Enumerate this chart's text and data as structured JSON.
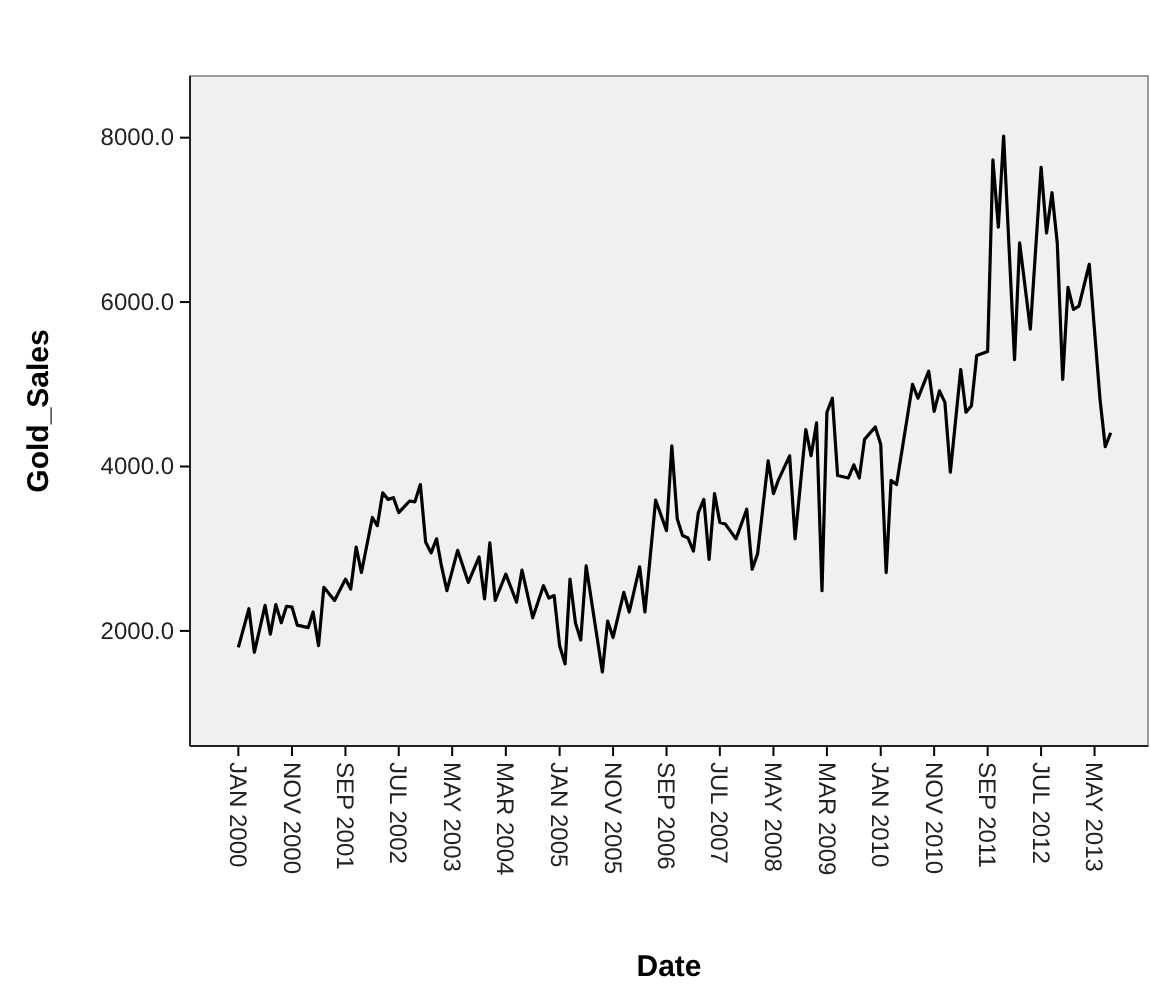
{
  "chart_data": {
    "type": "line",
    "xlabel": "Date",
    "ylabel": "Gold_Sales",
    "xlim": [
      "1999-04",
      "2014-03"
    ],
    "xticks": [
      {
        "value": "2000-01",
        "label": "JAN 2000"
      },
      {
        "value": "2000-11",
        "label": "NOV 2000"
      },
      {
        "value": "2001-09",
        "label": "SEP 2001"
      },
      {
        "value": "2002-07",
        "label": "JUL 2002"
      },
      {
        "value": "2003-05",
        "label": "MAY 2003"
      },
      {
        "value": "2004-03",
        "label": "MAR 2004"
      },
      {
        "value": "2005-01",
        "label": "JAN 2005"
      },
      {
        "value": "2005-11",
        "label": "NOV 2005"
      },
      {
        "value": "2006-09",
        "label": "SEP 2006"
      },
      {
        "value": "2007-07",
        "label": "JUL 2007"
      },
      {
        "value": "2008-05",
        "label": "MAY 2008"
      },
      {
        "value": "2009-03",
        "label": "MAR 2009"
      },
      {
        "value": "2010-01",
        "label": "JAN 2010"
      },
      {
        "value": "2010-11",
        "label": "NOV 2010"
      },
      {
        "value": "2011-09",
        "label": "SEP 2011"
      },
      {
        "value": "2012-07",
        "label": "JUL 2012"
      },
      {
        "value": "2013-05",
        "label": "MAY 2013"
      }
    ],
    "ylim": [
      600,
      8750
    ],
    "yticks": [
      {
        "value": 2000,
        "label": "2000.0"
      },
      {
        "value": 4000,
        "label": "4000.0"
      },
      {
        "value": 6000,
        "label": "6000.0"
      },
      {
        "value": 8000,
        "label": "8000.0"
      }
    ],
    "grid": false,
    "marker": "none",
    "line_style": "solid",
    "x": [
      "2000-01",
      "2000-03",
      "2000-04",
      "2000-06",
      "2000-07",
      "2000-08",
      "2000-09",
      "2000-10",
      "2000-11",
      "2000-12",
      "2001-02",
      "2001-03",
      "2001-04",
      "2001-05",
      "2001-07",
      "2001-09",
      "2001-10",
      "2001-11",
      "2001-12",
      "2002-02",
      "2002-03",
      "2002-04",
      "2002-05",
      "2002-06",
      "2002-07",
      "2002-09",
      "2002-10",
      "2002-11",
      "2002-12",
      "2003-01",
      "2003-02",
      "2003-03",
      "2003-04",
      "2003-06",
      "2003-08",
      "2003-10",
      "2003-11",
      "2003-12",
      "2004-01",
      "2004-03",
      "2004-05",
      "2004-06",
      "2004-08",
      "2004-10",
      "2004-11",
      "2004-12",
      "2005-01",
      "2005-02",
      "2005-03",
      "2005-04",
      "2005-05",
      "2005-06",
      "2005-09",
      "2005-10",
      "2005-11",
      "2006-01",
      "2006-02",
      "2006-04",
      "2006-05",
      "2006-07",
      "2006-09",
      "2006-10",
      "2006-11",
      "2006-12",
      "2007-01",
      "2007-02",
      "2007-03",
      "2007-04",
      "2007-05",
      "2007-06",
      "2007-07",
      "2007-08",
      "2007-10",
      "2007-12",
      "2008-01",
      "2008-02",
      "2008-04",
      "2008-05",
      "2008-06",
      "2008-08",
      "2008-09",
      "2008-11",
      "2008-12",
      "2009-01",
      "2009-02",
      "2009-03",
      "2009-04",
      "2009-05",
      "2009-07",
      "2009-08",
      "2009-09",
      "2009-10",
      "2009-12",
      "2010-01",
      "2010-02",
      "2010-03",
      "2010-04",
      "2010-07",
      "2010-08",
      "2010-10",
      "2010-11",
      "2010-12",
      "2011-01",
      "2011-02",
      "2011-04",
      "2011-05",
      "2011-06",
      "2011-07",
      "2011-09",
      "2011-10",
      "2011-11",
      "2011-12",
      "2012-02",
      "2012-03",
      "2012-05",
      "2012-07",
      "2012-08",
      "2012-09",
      "2012-10",
      "2012-11",
      "2012-12",
      "2013-01",
      "2013-02",
      "2013-04",
      "2013-06",
      "2013-07",
      "2013-08"
    ],
    "series": [
      {
        "color": "#000000",
        "values": [
          1800,
          2270,
          1740,
          2310,
          1960,
          2320,
          2100,
          2300,
          2290,
          2070,
          2040,
          2230,
          1820,
          2530,
          2370,
          2630,
          2510,
          3020,
          2710,
          3380,
          3280,
          3680,
          3600,
          3620,
          3440,
          3580,
          3570,
          3780,
          3080,
          2950,
          3120,
          2790,
          2490,
          2980,
          2590,
          2900,
          2390,
          3070,
          2370,
          2690,
          2350,
          2740,
          2160,
          2550,
          2400,
          2430,
          1820,
          1600,
          2630,
          2100,
          1890,
          2790,
          1500,
          2120,
          1920,
          2470,
          2230,
          2780,
          2230,
          3590,
          3220,
          4250,
          3360,
          3160,
          3130,
          2970,
          3440,
          3600,
          2870,
          3670,
          3320,
          3300,
          3120,
          3480,
          2750,
          2940,
          4070,
          3670,
          3850,
          4130,
          3120,
          4450,
          4130,
          4530,
          2490,
          4660,
          4830,
          3890,
          3860,
          4020,
          3860,
          4330,
          4480,
          4270,
          2710,
          3830,
          3780,
          5000,
          4830,
          5160,
          4670,
          4920,
          4780,
          3930,
          5180,
          4660,
          4740,
          5350,
          5400,
          7730,
          6910,
          8020,
          5300,
          6720,
          5670,
          7640,
          6840,
          7330,
          6720,
          5060,
          6180,
          5910,
          5950,
          6460,
          4820,
          4240,
          4410
        ]
      }
    ]
  }
}
